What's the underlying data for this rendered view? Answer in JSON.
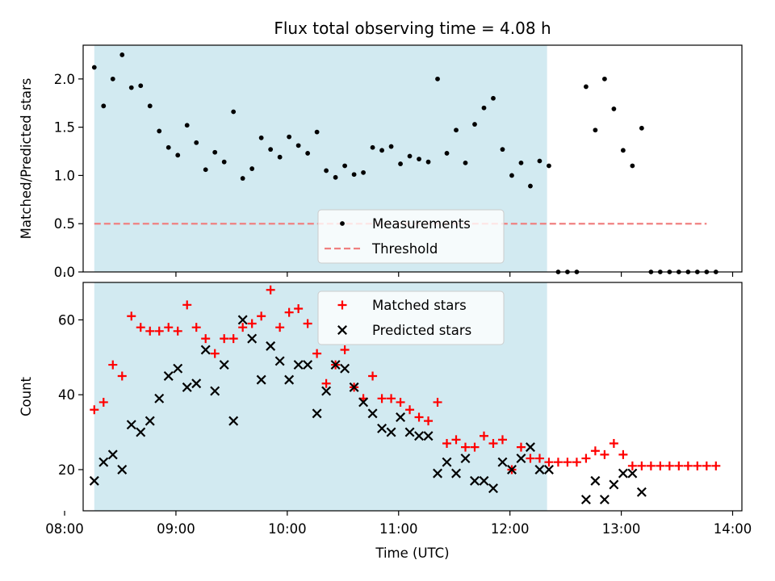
{
  "chart_data": [
    {
      "type": "scatter",
      "title": "Flux total observing time = 4.08 h",
      "xlabel": "",
      "ylabel": "Matched/Predicted stars",
      "xlim": [
        "08:10",
        "14:05"
      ],
      "ylim": [
        0,
        2.35
      ],
      "yticks": [
        "0.0",
        "0.5",
        "1.0",
        "1.5",
        "2.0"
      ],
      "grid": false,
      "legend_position": "lower-center",
      "shaded_span": {
        "start": "08:16",
        "end": "12:20",
        "color": "#add8e6"
      },
      "series": [
        {
          "name": "Measurements",
          "marker": "dot",
          "color": "#000000",
          "x": [
            "08:16",
            "08:21",
            "08:26",
            "08:31",
            "08:36",
            "08:41",
            "08:46",
            "08:51",
            "08:56",
            "09:01",
            "09:06",
            "09:11",
            "09:16",
            "09:21",
            "09:26",
            "09:31",
            "09:36",
            "09:41",
            "09:46",
            "09:51",
            "09:56",
            "10:01",
            "10:06",
            "10:11",
            "10:16",
            "10:21",
            "10:26",
            "10:31",
            "10:36",
            "10:41",
            "10:46",
            "10:51",
            "10:56",
            "11:01",
            "11:06",
            "11:11",
            "11:16",
            "11:21",
            "11:26",
            "11:31",
            "11:36",
            "11:41",
            "11:46",
            "11:51",
            "11:56",
            "12:01",
            "12:06",
            "12:11",
            "12:16",
            "12:21",
            "12:26",
            "12:31",
            "12:36",
            "12:41",
            "12:46",
            "12:51",
            "12:56",
            "13:01",
            "13:06",
            "13:11",
            "13:16",
            "13:21",
            "13:26",
            "13:31",
            "13:36",
            "13:41",
            "13:46",
            "13:51"
          ],
          "values": [
            2.12,
            1.72,
            2.0,
            2.25,
            1.91,
            1.93,
            1.72,
            1.46,
            1.29,
            1.21,
            1.52,
            1.34,
            1.06,
            1.24,
            1.14,
            1.66,
            0.97,
            1.07,
            1.39,
            1.27,
            1.19,
            1.4,
            1.31,
            1.23,
            1.45,
            1.05,
            0.98,
            1.1,
            1.01,
            1.03,
            1.29,
            1.26,
            1.3,
            1.12,
            1.2,
            1.17,
            1.14,
            2.0,
            1.23,
            1.47,
            1.13,
            1.53,
            1.7,
            1.8,
            1.27,
            1.0,
            1.13,
            0.89,
            1.15,
            1.1,
            0.0,
            0.0,
            0.0,
            1.92,
            1.47,
            2.0,
            1.69,
            1.26,
            1.1,
            1.49,
            0.0,
            0.0,
            0.0,
            0.0,
            0.0,
            0.0,
            0.0,
            0.0
          ]
        },
        {
          "name": "Threshold",
          "style": "dashed",
          "color": "#f08080",
          "x": [
            "08:16",
            "13:46"
          ],
          "values": [
            0.5,
            0.5
          ]
        }
      ]
    },
    {
      "type": "scatter",
      "title": "",
      "xlabel": "Time (UTC)",
      "ylabel": "Count",
      "xlim": [
        "08:10",
        "14:05"
      ],
      "ylim": [
        9,
        70
      ],
      "xticks": [
        "08:00",
        "09:00",
        "10:00",
        "11:00",
        "12:00",
        "13:00",
        "14:00"
      ],
      "yticks": [
        "20",
        "40",
        "60"
      ],
      "grid": false,
      "legend_position": "upper-center",
      "shaded_span": {
        "start": "08:16",
        "end": "12:20",
        "color": "#add8e6"
      },
      "series": [
        {
          "name": "Matched stars",
          "marker": "plus",
          "color": "#ff0000",
          "x": [
            "08:16",
            "08:21",
            "08:26",
            "08:31",
            "08:36",
            "08:41",
            "08:46",
            "08:51",
            "08:56",
            "09:01",
            "09:06",
            "09:11",
            "09:16",
            "09:21",
            "09:26",
            "09:31",
            "09:36",
            "09:41",
            "09:46",
            "09:51",
            "09:56",
            "10:01",
            "10:06",
            "10:11",
            "10:16",
            "10:21",
            "10:26",
            "10:31",
            "10:36",
            "10:41",
            "10:46",
            "10:51",
            "10:56",
            "11:01",
            "11:06",
            "11:11",
            "11:16",
            "11:21",
            "11:26",
            "11:31",
            "11:36",
            "11:41",
            "11:46",
            "11:51",
            "11:56",
            "12:01",
            "12:06",
            "12:11",
            "12:16",
            "12:21",
            "12:26",
            "12:31",
            "12:36",
            "12:41",
            "12:46",
            "12:51",
            "12:56",
            "13:01",
            "13:06",
            "13:11",
            "13:16",
            "13:21",
            "13:26",
            "13:31",
            "13:36",
            "13:41",
            "13:46",
            "13:51"
          ],
          "values": [
            36,
            38,
            48,
            45,
            61,
            58,
            57,
            57,
            58,
            57,
            64,
            58,
            55,
            51,
            55,
            55,
            58,
            59,
            61,
            68,
            58,
            62,
            63,
            59,
            51,
            43,
            48,
            52,
            42,
            39,
            45,
            39,
            39,
            38,
            36,
            34,
            33,
            38,
            27,
            28,
            26,
            26,
            29,
            27,
            28,
            20,
            26,
            23,
            23,
            22,
            22,
            22,
            22,
            23,
            25,
            24,
            27,
            24,
            21,
            21,
            21,
            21,
            21,
            21,
            21,
            21,
            21,
            21
          ]
        },
        {
          "name": "Predicted stars",
          "marker": "x",
          "color": "#000000",
          "x": [
            "08:16",
            "08:21",
            "08:26",
            "08:31",
            "08:36",
            "08:41",
            "08:46",
            "08:51",
            "08:56",
            "09:01",
            "09:06",
            "09:11",
            "09:16",
            "09:21",
            "09:26",
            "09:31",
            "09:36",
            "09:41",
            "09:46",
            "09:51",
            "09:56",
            "10:01",
            "10:06",
            "10:11",
            "10:16",
            "10:21",
            "10:26",
            "10:31",
            "10:36",
            "10:41",
            "10:46",
            "10:51",
            "10:56",
            "11:01",
            "11:06",
            "11:11",
            "11:16",
            "11:21",
            "11:26",
            "11:31",
            "11:36",
            "11:41",
            "11:46",
            "11:51",
            "11:56",
            "12:01",
            "12:06",
            "12:11",
            "12:16",
            "12:21",
            "12:41",
            "12:46",
            "12:51",
            "12:56",
            "13:01",
            "13:06",
            "13:11"
          ],
          "values": [
            17,
            22,
            24,
            20,
            32,
            30,
            33,
            39,
            45,
            47,
            42,
            43,
            52,
            41,
            48,
            33,
            60,
            55,
            44,
            53,
            49,
            44,
            48,
            48,
            35,
            41,
            48,
            47,
            42,
            38,
            35,
            31,
            30,
            34,
            30,
            29,
            29,
            19,
            22,
            19,
            23,
            17,
            17,
            15,
            22,
            20,
            23,
            26,
            20,
            20,
            12,
            17,
            12,
            16,
            19,
            19,
            14
          ]
        }
      ]
    }
  ]
}
